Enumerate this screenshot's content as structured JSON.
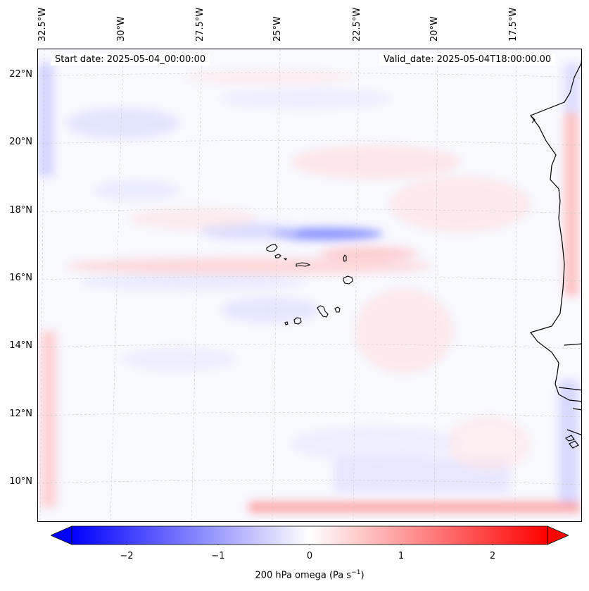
{
  "map": {
    "start_date": "Start date: 2025-05-04_00:00:00",
    "valid_date": "Valid_date: 2025-05-04T18:00:00.00",
    "lon_labels": [
      "32.5°W",
      "30°W",
      "27.5°W",
      "25°W",
      "22.5°W",
      "20°W",
      "17.5°W"
    ],
    "lat_labels": [
      "22°N",
      "20°N",
      "18°N",
      "16°N",
      "14°N",
      "12°N",
      "10°N"
    ],
    "variable": "200 hPa omega",
    "units_base": "Pa s",
    "units_exp": "−1",
    "colormap": "bwr",
    "colors": {
      "negative": "#0000ff",
      "zero": "#ffffff",
      "positive": "#ff0000",
      "coast": "#000000",
      "grid": "#c8c8c8"
    }
  },
  "colorbar": {
    "min": -2.6,
    "max": 2.6,
    "ticks": [
      {
        "value": -2,
        "label": "−2"
      },
      {
        "value": -1,
        "label": "−1"
      },
      {
        "value": 0,
        "label": "0"
      },
      {
        "value": 1,
        "label": "1"
      },
      {
        "value": 2,
        "label": "2"
      }
    ],
    "extend": "both"
  }
}
